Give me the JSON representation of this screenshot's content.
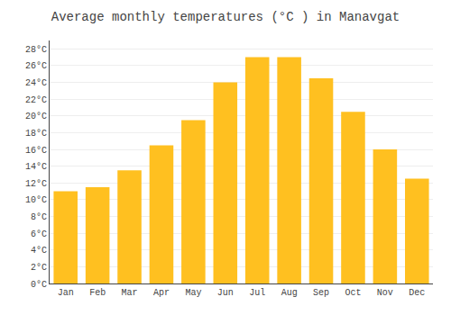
{
  "chart_data": {
    "type": "bar",
    "title": "Average monthly temperatures (°C ) in Manavgat",
    "categories": [
      "Jan",
      "Feb",
      "Mar",
      "Apr",
      "May",
      "Jun",
      "Jul",
      "Aug",
      "Sep",
      "Oct",
      "Nov",
      "Dec"
    ],
    "values": [
      11.0,
      11.5,
      13.5,
      16.5,
      19.5,
      24.0,
      27.0,
      27.0,
      24.5,
      20.5,
      16.0,
      12.5
    ],
    "color": "#FFC020",
    "ylim": [
      0,
      29
    ],
    "yticks": [
      {
        "value": 0,
        "label": "0°C"
      },
      {
        "value": 2,
        "label": "2°C"
      },
      {
        "value": 4,
        "label": "4°C"
      },
      {
        "value": 6,
        "label": "6°C"
      },
      {
        "value": 8,
        "label": "8°C"
      },
      {
        "value": 10,
        "label": "10°C"
      },
      {
        "value": 12,
        "label": "12°C"
      },
      {
        "value": 14,
        "label": "14°C"
      },
      {
        "value": 16,
        "label": "16°C"
      },
      {
        "value": 18,
        "label": "18°C"
      },
      {
        "value": 20,
        "label": "20°C"
      },
      {
        "value": 22,
        "label": "22°C"
      },
      {
        "value": 24,
        "label": "24°C"
      },
      {
        "value": 26,
        "label": "26°C"
      },
      {
        "value": 28,
        "label": "28°C"
      }
    ],
    "grid": true
  }
}
